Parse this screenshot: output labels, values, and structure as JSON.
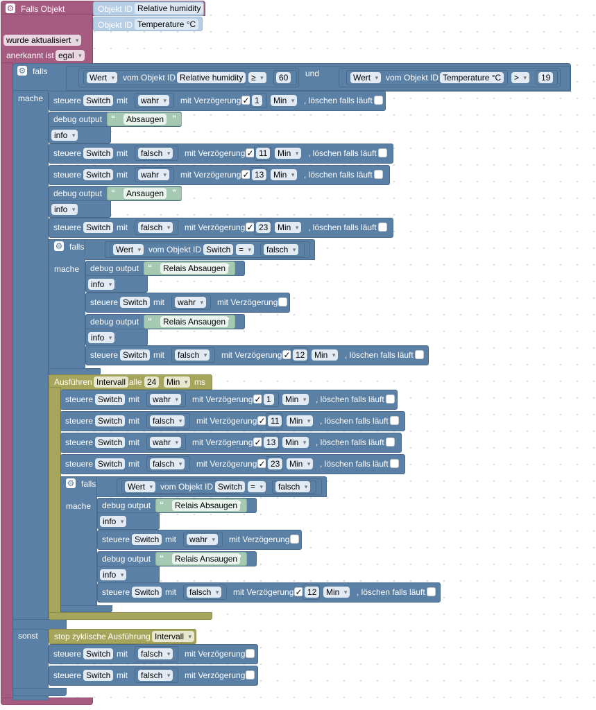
{
  "trigger": {
    "title": "Falls Objekt",
    "ids": [
      {
        "label": "Objekt ID",
        "value": "Relative humidity"
      },
      {
        "label": "Objekt ID",
        "value": "Temperature  °C"
      }
    ],
    "updated": "wurde aktualisiert",
    "ack_label": "anerkannt ist",
    "ack_value": "egal"
  },
  "w": {
    "falls": "falls",
    "mache": "mache",
    "sonst": "sonst",
    "und": "und",
    "wert": "Wert",
    "vom": "vom Objekt ID",
    "steuere": "steuere",
    "mit": "mit",
    "delay": "mit Verzögerung",
    "clear": ", löschen falls läuft",
    "min": "Min",
    "debug": "debug output",
    "info": "info",
    "check": "✓",
    "wahr": "wahr",
    "falsch": "falsch",
    "switch": "Switch",
    "eq": "=",
    "ge": "≥",
    "gt": ">",
    "hum": "Relative humidity",
    "temp": "Temperature  °C",
    "run": "Ausführen",
    "interval": "Intervall",
    "alle": "alle",
    "ms": "ms",
    "stop": "stop zyklische Ausführung"
  },
  "cond": {
    "v1": "60",
    "v2": "19"
  },
  "s1": {
    "text": "Absaugen",
    "d1": "1",
    "d2": "11",
    "d3": "13",
    "d4": "23"
  },
  "s2": {
    "text": "Ansaugen"
  },
  "relais": {
    "a": "Relais Absaugen",
    "b": "Relais Ansaugen",
    "d": "12"
  },
  "interval": {
    "every": "24"
  },
  "loop": {
    "d1": "1",
    "d2": "11",
    "d3": "13",
    "d4": "23"
  }
}
